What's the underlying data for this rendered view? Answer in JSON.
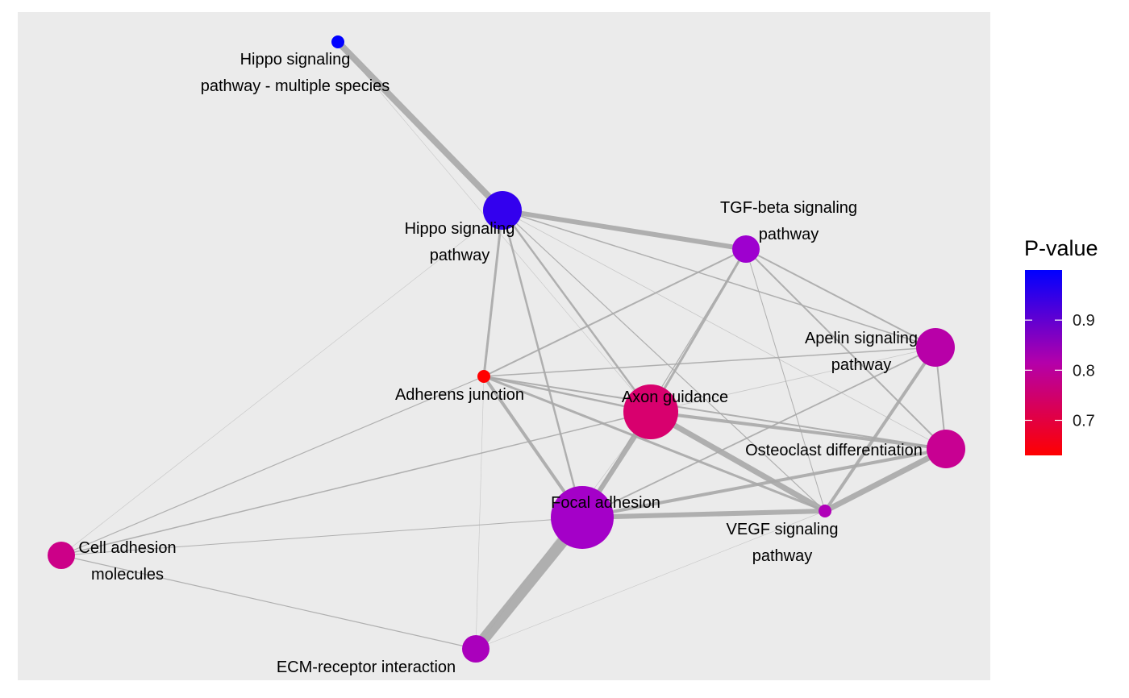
{
  "legend": {
    "title": "P-value",
    "ticks": [
      {
        "label": "0.9",
        "value": 0.9
      },
      {
        "label": "0.8",
        "value": 0.8
      },
      {
        "label": "0.7",
        "value": 0.7
      }
    ],
    "range": [
      0.63,
      1.0
    ],
    "color_low": "#ff0000",
    "color_mid": "#b400aa",
    "color_high": "#0000ff"
  },
  "colors": {
    "panel_background": "#ebebeb",
    "edge": "#a8a8a8"
  },
  "nodes": [
    {
      "id": "hippo-ms",
      "label_lines": [
        "Hippo signaling",
        "pathway - multiple species"
      ],
      "color": "#0000ff",
      "size": "small"
    },
    {
      "id": "hippo",
      "label_lines": [
        "Hippo signaling",
        "pathway"
      ],
      "color": "#3300ee",
      "size": "large"
    },
    {
      "id": "tgf",
      "label_lines": [
        "TGF-beta signaling",
        "pathway"
      ],
      "color": "#9e00cf",
      "size": "medium"
    },
    {
      "id": "apelin",
      "label_lines": [
        "Apelin signaling",
        "pathway"
      ],
      "color": "#b800a8",
      "size": "large"
    },
    {
      "id": "adherens",
      "label_lines": [
        "Adherens junction"
      ],
      "color": "#ff0000",
      "size": "small"
    },
    {
      "id": "axon",
      "label_lines": [
        "Axon guidance"
      ],
      "color": "#d8006e",
      "size": "xlarge"
    },
    {
      "id": "osteo",
      "label_lines": [
        "Osteoclast differentiation"
      ],
      "color": "#c80092",
      "size": "large"
    },
    {
      "id": "focal",
      "label_lines": [
        "Focal adhesion"
      ],
      "color": "#a400c8",
      "size": "xxlarge"
    },
    {
      "id": "vegf",
      "label_lines": [
        "VEGF signaling",
        "pathway"
      ],
      "color": "#b000b8",
      "size": "small"
    },
    {
      "id": "cam",
      "label_lines": [
        "Cell adhesion",
        "molecules"
      ],
      "color": "#cc0088",
      "size": "medium"
    },
    {
      "id": "ecm",
      "label_lines": [
        "ECM-receptor interaction"
      ],
      "color": "#aa00bc",
      "size": "medium"
    }
  ],
  "edges": [
    {
      "source": "hippo-ms",
      "target": "hippo",
      "weight": 8
    },
    {
      "source": "hippo-ms",
      "target": "axon",
      "weight": 0.6
    },
    {
      "source": "hippo",
      "target": "tgf",
      "weight": 6
    },
    {
      "source": "hippo",
      "target": "adherens",
      "weight": 3
    },
    {
      "source": "hippo",
      "target": "focal",
      "weight": 2.5
    },
    {
      "source": "hippo",
      "target": "axon",
      "weight": 2.5
    },
    {
      "source": "hippo",
      "target": "apelin",
      "weight": 1.5
    },
    {
      "source": "hippo",
      "target": "osteo",
      "weight": 0.8
    },
    {
      "source": "hippo",
      "target": "vegf",
      "weight": 1.2
    },
    {
      "source": "hippo",
      "target": "cam",
      "weight": 0.6
    },
    {
      "source": "tgf",
      "target": "adherens",
      "weight": 2
    },
    {
      "source": "tgf",
      "target": "axon",
      "weight": 3
    },
    {
      "source": "tgf",
      "target": "apelin",
      "weight": 2
    },
    {
      "source": "tgf",
      "target": "osteo",
      "weight": 2
    },
    {
      "source": "tgf",
      "target": "vegf",
      "weight": 1
    },
    {
      "source": "tgf",
      "target": "focal",
      "weight": 1.2
    },
    {
      "source": "apelin",
      "target": "adherens",
      "weight": 1.5
    },
    {
      "source": "apelin",
      "target": "osteo",
      "weight": 2
    },
    {
      "source": "apelin",
      "target": "vegf",
      "weight": 4
    },
    {
      "source": "apelin",
      "target": "focal",
      "weight": 1.8
    },
    {
      "source": "apelin",
      "target": "axon",
      "weight": 0.8
    },
    {
      "source": "adherens",
      "target": "axon",
      "weight": 2.5
    },
    {
      "source": "adherens",
      "target": "focal",
      "weight": 4
    },
    {
      "source": "adherens",
      "target": "osteo",
      "weight": 2
    },
    {
      "source": "adherens",
      "target": "vegf",
      "weight": 3
    },
    {
      "source": "adherens",
      "target": "ecm",
      "weight": 0.6
    },
    {
      "source": "adherens",
      "target": "cam",
      "weight": 1.2
    },
    {
      "source": "axon",
      "target": "focal",
      "weight": 6
    },
    {
      "source": "axon",
      "target": "vegf",
      "weight": 7
    },
    {
      "source": "axon",
      "target": "osteo",
      "weight": 4
    },
    {
      "source": "axon",
      "target": "cam",
      "weight": 1.5
    },
    {
      "source": "axon",
      "target": "ecm",
      "weight": 0.6
    },
    {
      "source": "focal",
      "target": "vegf",
      "weight": 6
    },
    {
      "source": "focal",
      "target": "osteo",
      "weight": 4
    },
    {
      "source": "focal",
      "target": "ecm",
      "weight": 14
    },
    {
      "source": "focal",
      "target": "cam",
      "weight": 1
    },
    {
      "source": "osteo",
      "target": "vegf",
      "weight": 7
    },
    {
      "source": "vegf",
      "target": "ecm",
      "weight": 0.6
    },
    {
      "source": "cam",
      "target": "ecm",
      "weight": 1.2
    }
  ]
}
